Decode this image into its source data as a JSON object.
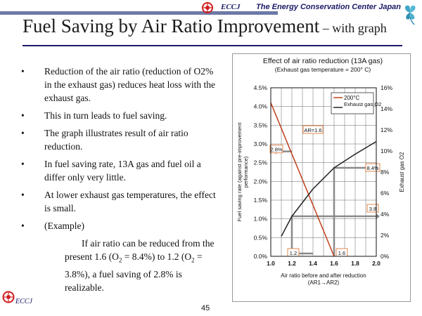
{
  "header": {
    "org_short": "ECCJ",
    "org_full": "The Energy Conservation Center Japan",
    "brand_color": "#1a1a66"
  },
  "slide": {
    "title_main": "Fuel Saving by Air Ratio Improvement",
    "title_sub": " – with graph",
    "bullets": [
      "Reduction of the air ratio (reduction of O2% in the exhaust gas) reduces heat loss with the exhaust gas.",
      "This in turn leads to fuel saving.",
      "The graph illustrates result of air ratio reduction.",
      "In fuel saving rate, 13A gas and fuel oil a differ only very little.",
      "At lower exhaust gas temperatures, the effect is small.",
      "(Example)"
    ],
    "bullet_marker": "•",
    "example": {
      "t1": "If air ratio can be reduced from the present 1.6 (O",
      "s1": "2",
      "t2": " = 8.4%) to 1.2 (O",
      "s2": "2",
      "t3": " = 3.8%), a fuel saving of 2.8% is realizable."
    },
    "page_number": "45"
  },
  "footer": {
    "brand": "ECCJ"
  },
  "chart_data": {
    "type": "line",
    "title": "Effect of air ratio reduction (13A gas)",
    "subtitle": "(Exhaust gas temperature = 200° C)",
    "xlabel": "Air ratio before and after reduction",
    "xlabel2": "(AR1→AR2)",
    "ylabel_left_1": "Fuel saving rate (against pre-improvement",
    "ylabel_left_2": "performance)",
    "ylabel_right": "Exhaust gas O2",
    "x_ticks": [
      "1.0",
      "1.2",
      "1.4",
      "1.6",
      "1.8",
      "2.0"
    ],
    "xlim": [
      1.0,
      2.0
    ],
    "y_left_ticks": [
      "0.0%",
      "0.5%",
      "1.0%",
      "1.5%",
      "2.0%",
      "2.5%",
      "3.0%",
      "3.5%",
      "4.0%",
      "4.5%"
    ],
    "ylim_left": [
      0,
      4.5
    ],
    "y_right_ticks": [
      "0%",
      "2%",
      "4%",
      "6%",
      "8%",
      "10%",
      "12%",
      "14%",
      "16%"
    ],
    "ylim_right": [
      0,
      16
    ],
    "grid": true,
    "legend": [
      "200°C",
      "Exhaust gas O2"
    ],
    "legend_position": "top-right",
    "series": [
      {
        "name": "200°C",
        "axis": "left",
        "color": "#c0401a",
        "x": [
          1.0,
          1.6
        ],
        "y": [
          4.1,
          0.0
        ]
      },
      {
        "name": "Exhaust gas O2",
        "axis": "right",
        "color": "#222222",
        "x": [
          1.1,
          1.2,
          1.4,
          1.6,
          1.8,
          2.0
        ],
        "y": [
          1.9,
          3.8,
          6.4,
          8.4,
          9.7,
          10.9
        ]
      }
    ],
    "annotations": {
      "ar_label": "AR=1.6",
      "saving": "2.8%",
      "o2_high": "8.4%",
      "o2_low": "3.8",
      "ar_low": "1.2",
      "ar_high": "1.6"
    }
  }
}
